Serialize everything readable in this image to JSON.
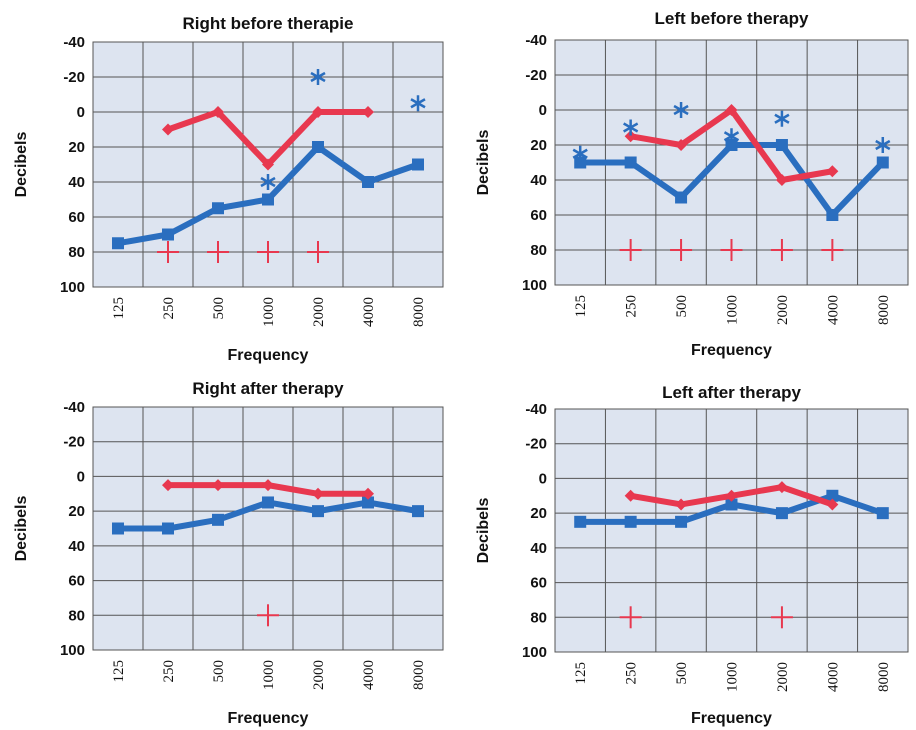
{
  "chart_data": [
    {
      "type": "line",
      "title": "Right before therapie",
      "xlabel": "Frequency",
      "ylabel": "Decibels",
      "categories": [
        "125",
        "250",
        "500",
        "1000",
        "2000",
        "4000",
        "8000"
      ],
      "y_ticks": [
        "-40",
        "-20",
        "0",
        "20",
        "40",
        "60",
        "80",
        "100"
      ],
      "ylim": [
        -40,
        100
      ],
      "y_inverted": true,
      "grid": true,
      "colors": {
        "blue": "#2a6ebf",
        "red": "#e8384f",
        "plot_bg": "#dde4f0",
        "grid": "#555555"
      },
      "series": [
        {
          "color": "blue",
          "marker": "square",
          "values": [
            75,
            70,
            55,
            50,
            20,
            40,
            30
          ]
        },
        {
          "color": "red",
          "marker": "diamond",
          "values": [
            null,
            10,
            0,
            30,
            0,
            0,
            null
          ]
        },
        {
          "color": "blue",
          "marker": "asterisk",
          "line": false,
          "values": [
            null,
            null,
            null,
            40,
            -20,
            null,
            -5
          ]
        },
        {
          "color": "red",
          "marker": "plus",
          "line": false,
          "values": [
            null,
            80,
            80,
            80,
            80,
            null,
            null
          ]
        }
      ]
    },
    {
      "type": "line",
      "title": "Left before therapy",
      "xlabel": "Frequency",
      "ylabel": "Decibels",
      "categories": [
        "125",
        "250",
        "500",
        "1000",
        "2000",
        "4000",
        "8000"
      ],
      "y_ticks": [
        "-40",
        "-20",
        "0",
        "20",
        "40",
        "60",
        "80",
        "100"
      ],
      "ylim": [
        -40,
        100
      ],
      "y_inverted": true,
      "grid": true,
      "colors": {
        "blue": "#2a6ebf",
        "red": "#e8384f",
        "plot_bg": "#dde4f0",
        "grid": "#555555"
      },
      "series": [
        {
          "color": "blue",
          "marker": "square",
          "values": [
            30,
            30,
            50,
            20,
            20,
            60,
            30
          ]
        },
        {
          "color": "red",
          "marker": "diamond",
          "values": [
            null,
            15,
            20,
            0,
            40,
            35,
            null
          ]
        },
        {
          "color": "blue",
          "marker": "asterisk",
          "line": false,
          "values": [
            25,
            10,
            0,
            15,
            5,
            null,
            20
          ]
        },
        {
          "color": "red",
          "marker": "plus",
          "line": false,
          "values": [
            null,
            80,
            80,
            80,
            80,
            80,
            null
          ]
        }
      ]
    },
    {
      "type": "line",
      "title": "Right after therapy",
      "xlabel": "Frequency",
      "ylabel": "Decibels",
      "categories": [
        "125",
        "250",
        "500",
        "1000",
        "2000",
        "4000",
        "8000"
      ],
      "y_ticks": [
        "-40",
        "-20",
        "0",
        "20",
        "40",
        "60",
        "80",
        "100"
      ],
      "ylim": [
        -40,
        100
      ],
      "y_inverted": true,
      "grid": true,
      "colors": {
        "blue": "#2a6ebf",
        "red": "#e8384f",
        "plot_bg": "#dde4f0",
        "grid": "#555555"
      },
      "series": [
        {
          "color": "blue",
          "marker": "square",
          "values": [
            30,
            30,
            25,
            15,
            20,
            15,
            20
          ]
        },
        {
          "color": "red",
          "marker": "diamond",
          "values": [
            null,
            5,
            5,
            5,
            10,
            10,
            null
          ]
        },
        {
          "color": "red",
          "marker": "plus",
          "line": false,
          "values": [
            null,
            null,
            null,
            80,
            null,
            null,
            null
          ]
        }
      ]
    },
    {
      "type": "line",
      "title": "Left after therapy",
      "xlabel": "Frequency",
      "ylabel": "Decibels",
      "categories": [
        "125",
        "250",
        "500",
        "1000",
        "2000",
        "4000",
        "8000"
      ],
      "y_ticks": [
        "-40",
        "-20",
        "0",
        "20",
        "40",
        "60",
        "80",
        "100"
      ],
      "ylim": [
        -40,
        100
      ],
      "y_inverted": true,
      "grid": true,
      "colors": {
        "blue": "#2a6ebf",
        "red": "#e8384f",
        "plot_bg": "#dde4f0",
        "grid": "#555555"
      },
      "series": [
        {
          "color": "blue",
          "marker": "square",
          "values": [
            25,
            25,
            25,
            15,
            20,
            10,
            20
          ]
        },
        {
          "color": "red",
          "marker": "diamond",
          "values": [
            null,
            10,
            15,
            10,
            5,
            15,
            null
          ]
        },
        {
          "color": "red",
          "marker": "plus",
          "line": false,
          "values": [
            null,
            80,
            null,
            null,
            80,
            null,
            null
          ]
        }
      ]
    }
  ]
}
